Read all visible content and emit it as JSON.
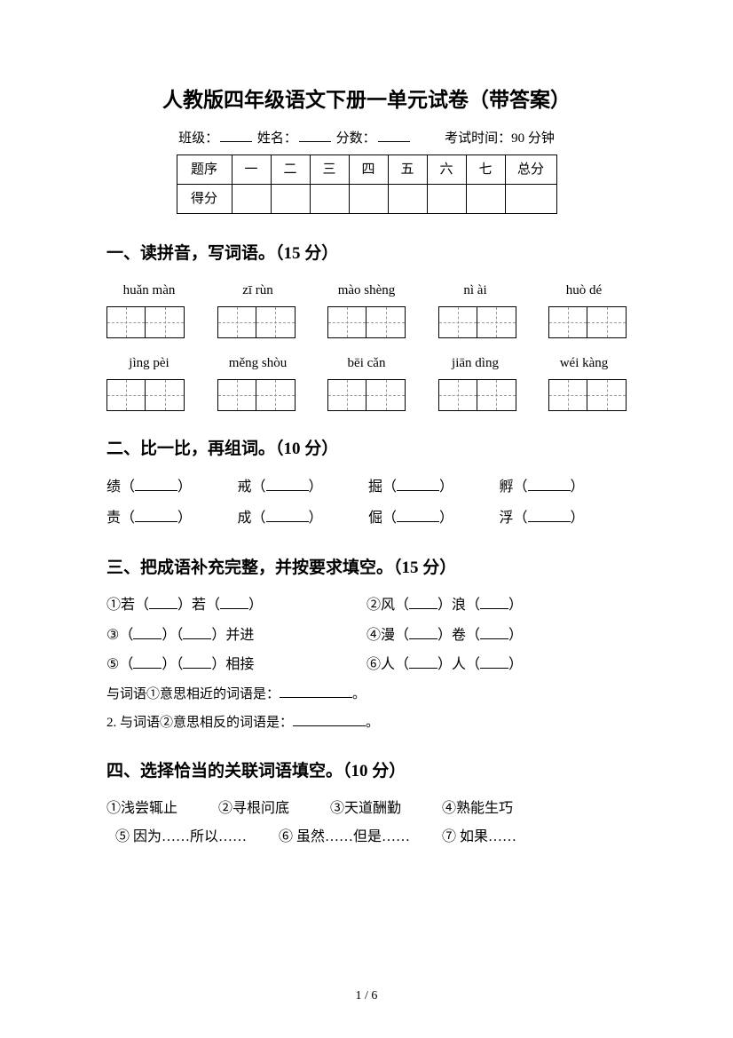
{
  "title": "人教版四年级语文下册一单元试卷（带答案）",
  "info": {
    "class_label": "班级：",
    "name_label": "姓名：",
    "score_label": "分数：",
    "time_label": "考试时间：90 分钟"
  },
  "score_table": {
    "row1": [
      "题序",
      "一",
      "二",
      "三",
      "四",
      "五",
      "六",
      "七",
      "总分"
    ],
    "row2_label": "得分"
  },
  "s1": {
    "heading": "一、读拼音，写词语。（15 分）",
    "row1": [
      "huǎn màn",
      "zī rùn",
      "mào shèng",
      "nì ài",
      "huò dé"
    ],
    "row2": [
      "jìng pèi",
      "měng shòu",
      "bēi cǎn",
      "jiān dìng",
      "wéi kàng"
    ]
  },
  "s2": {
    "heading": "二、比一比，再组词。（10 分）",
    "pairs": [
      [
        "绩",
        "责"
      ],
      [
        "戒",
        "成"
      ],
      [
        "掘",
        "倔"
      ],
      [
        "孵",
        "浮"
      ]
    ]
  },
  "s3": {
    "heading": "三、把成语补充完整，并按要求填空。（15 分）",
    "items": [
      "①若（        ）若（        ）",
      "②风（        ）浪（        ）",
      "③（        ）（        ）并进",
      "④漫（        ）卷（        ）",
      "⑤（        ）（        ）相接",
      "⑥人（        ）人（        ）"
    ],
    "sub1": "与词语①意思相近的词语是：",
    "sub1_end": "。",
    "sub2": "2. 与词语②意思相反的词语是：",
    "sub2_end": "。"
  },
  "s4": {
    "heading": "四、选择恰当的关联词语填空。（10 分）",
    "opts1": [
      "①浅尝辄止",
      "②寻根问底",
      "③天道酬勤",
      "④熟能生巧"
    ],
    "opts2": [
      "⑤ 因为……所以……",
      "⑥ 虽然……但是……",
      "⑦ 如果……"
    ]
  },
  "page_num": "1 / 6"
}
